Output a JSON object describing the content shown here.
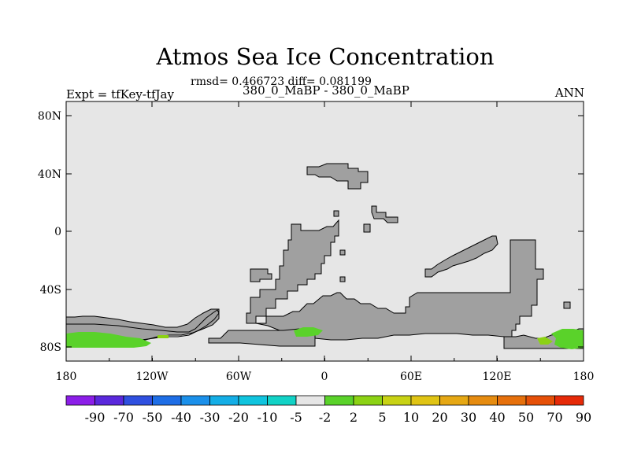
{
  "plot": {
    "title": "Atmos Sea Ice Concentration",
    "stats": "rmsd= 0.466723 diff= 0.081199",
    "subtitle": "380_0_MaBP - 380_0_MaBP",
    "left_label": "Expt = tfKey-tfJay",
    "right_label": "ANN",
    "lat_ticks": [
      "80N",
      "40N",
      "0",
      "40S",
      "80S"
    ],
    "lon_ticks": [
      "180",
      "120W",
      "60W",
      "0",
      "60E",
      "120E",
      "180"
    ]
  },
  "colorbar": {
    "labels": [
      "-90",
      "-70",
      "-50",
      "-40",
      "-30",
      "-20",
      "-10",
      "-5",
      "-2",
      "2",
      "5",
      "10",
      "20",
      "30",
      "40",
      "50",
      "70",
      "90"
    ],
    "colors": [
      "#8c1ee8",
      "#5a28dc",
      "#2f50e0",
      "#1e6ee6",
      "#1b90ea",
      "#14aee6",
      "#10c4de",
      "#12d2c6",
      "#e6e6e6",
      "#5ad22a",
      "#8cd214",
      "#c8d214",
      "#e0c414",
      "#e6a814",
      "#e68c10",
      "#e6700c",
      "#e65008",
      "#e62a08"
    ]
  },
  "map": {
    "ocean_color": "#e6e6e6",
    "land_color": "#a0a0a0",
    "anomaly_color": "#5ad22a",
    "anomaly_light_color": "#8cd214"
  }
}
